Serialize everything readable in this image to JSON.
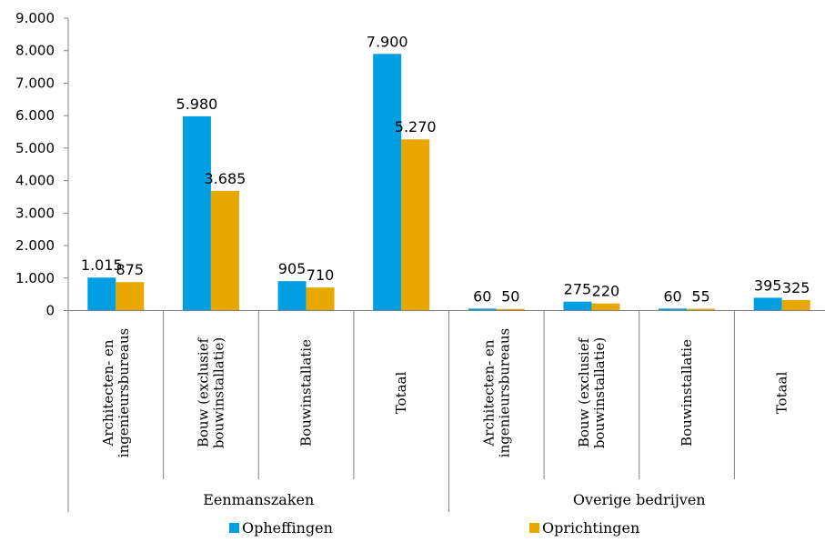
{
  "chart_data": {
    "type": "bar",
    "y_ticks": [
      "0",
      "1.000",
      "2.000",
      "3.000",
      "4.000",
      "5.000",
      "6.000",
      "7.000",
      "8.000",
      "9.000"
    ],
    "ylim": [
      0,
      9000
    ],
    "groups": [
      {
        "name": "Eenmanszaken",
        "categories": [
          [
            "Architecten- en",
            "ingenieursbureaus"
          ],
          [
            "Bouw (exclusief",
            "bouwinstallatie)"
          ],
          [
            "Bouwinstallatie"
          ],
          [
            "Totaal"
          ]
        ]
      },
      {
        "name": "Overige bedrijven",
        "categories": [
          [
            "Architecten- en",
            "ingenieursbureaus"
          ],
          [
            "Bouw (exclusief",
            "bouwinstallatie)"
          ],
          [
            "Bouwinstallatie"
          ],
          [
            "Totaal"
          ]
        ]
      }
    ],
    "series": [
      {
        "name": "Opheffingen",
        "color": "#009FE3",
        "values": [
          1015,
          5980,
          905,
          7900,
          60,
          275,
          60,
          395
        ],
        "labels": [
          "1.015",
          "5.980",
          "905",
          "7.900",
          "60",
          "275",
          "60",
          "395"
        ]
      },
      {
        "name": "Oprichtingen",
        "color": "#E8A800",
        "values": [
          875,
          3685,
          710,
          5270,
          50,
          220,
          55,
          325
        ],
        "labels": [
          "875",
          "3.685",
          "710",
          "5.270",
          "50",
          "220",
          "55",
          "325"
        ]
      }
    ],
    "legend_position": "bottom",
    "grid": false
  }
}
